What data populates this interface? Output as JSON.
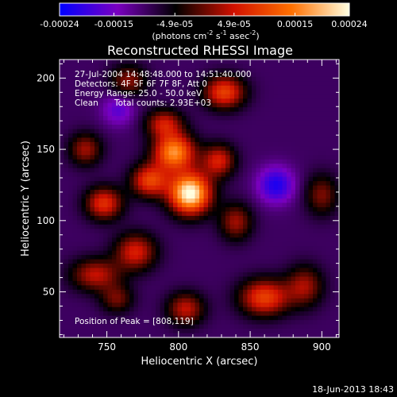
{
  "chart_data": {
    "type": "heatmap",
    "title": "Reconstructed RHESSI Image",
    "xlabel": "Heliocentric X (arcsec)",
    "ylabel": "Heliocentric Y (arcsec)",
    "xlim": [
      717,
      912
    ],
    "ylim": [
      18,
      213
    ],
    "x_ticks": [
      750,
      800,
      850,
      900
    ],
    "y_ticks": [
      50,
      100,
      150,
      200
    ],
    "colorbar": {
      "range": [
        -0.00024,
        0.00024
      ],
      "tick_values": [
        -0.00024,
        -0.00015,
        -4.9e-05,
        4.9e-05,
        0.00015,
        0.00024
      ],
      "tick_labels": [
        "-0.00024",
        "-0.00015",
        "-4.9e-05",
        "4.9e-05",
        "0.00015",
        "0.00024"
      ],
      "units_label": "(photons cm",
      "units_exp1": "-2",
      "units_mid": " s",
      "units_exp2": "-1",
      "units_mid2": " asec",
      "units_exp3": "-2",
      "units_end": ")",
      "colormap": [
        "#0000ff",
        "#7a00c0",
        "#000000",
        "#d01000",
        "#ff7000",
        "#ffffe0"
      ]
    },
    "annotations": {
      "time": "27-Jul-2004 14:48:48.000 to 14:51:40.000",
      "detectors": "Detectors: 4F 5F 6F 7F 8F, Att 0",
      "energy": "Energy Range: 25.0 - 50.0 keV",
      "algorithm": "Clean",
      "counts": "Total counts: 2.93E+03",
      "peak": "Position of Peak = [808,119]"
    },
    "peak_position": [
      808,
      119
    ],
    "sources": [
      {
        "x": 808,
        "y": 119,
        "amp": 1.0,
        "sx": 10,
        "sy": 10
      },
      {
        "x": 797,
        "y": 148,
        "amp": 0.75,
        "sx": 10,
        "sy": 9
      },
      {
        "x": 780,
        "y": 128,
        "amp": 0.55,
        "sx": 9,
        "sy": 8
      },
      {
        "x": 828,
        "y": 142,
        "amp": 0.45,
        "sx": 8,
        "sy": 8
      },
      {
        "x": 790,
        "y": 168,
        "amp": 0.42,
        "sx": 9,
        "sy": 7
      },
      {
        "x": 832,
        "y": 190,
        "amp": 0.55,
        "sx": 10,
        "sy": 8
      },
      {
        "x": 840,
        "y": 99,
        "amp": 0.35,
        "sx": 8,
        "sy": 9
      },
      {
        "x": 748,
        "y": 112,
        "amp": 0.5,
        "sx": 9,
        "sy": 8
      },
      {
        "x": 735,
        "y": 150,
        "amp": 0.35,
        "sx": 8,
        "sy": 8
      },
      {
        "x": 742,
        "y": 62,
        "amp": 0.4,
        "sx": 12,
        "sy": 8
      },
      {
        "x": 770,
        "y": 78,
        "amp": 0.45,
        "sx": 10,
        "sy": 9
      },
      {
        "x": 860,
        "y": 46,
        "amp": 0.55,
        "sx": 12,
        "sy": 9
      },
      {
        "x": 888,
        "y": 54,
        "amp": 0.35,
        "sx": 9,
        "sy": 10
      },
      {
        "x": 805,
        "y": 38,
        "amp": 0.4,
        "sx": 9,
        "sy": 8
      },
      {
        "x": 900,
        "y": 118,
        "amp": 0.3,
        "sx": 8,
        "sy": 10
      },
      {
        "x": 765,
        "y": 198,
        "amp": 0.32,
        "sx": 9,
        "sy": 8
      },
      {
        "x": 757,
        "y": 45,
        "amp": 0.28,
        "sx": 8,
        "sy": 7
      }
    ],
    "negatives": [
      {
        "x": 868,
        "y": 125,
        "amp": 0.35,
        "sx": 9,
        "sy": 9
      },
      {
        "x": 758,
        "y": 178,
        "amp": 0.22,
        "sx": 8,
        "sy": 8
      }
    ]
  },
  "footer": {
    "date": "18-Jun-2013 18:43"
  }
}
